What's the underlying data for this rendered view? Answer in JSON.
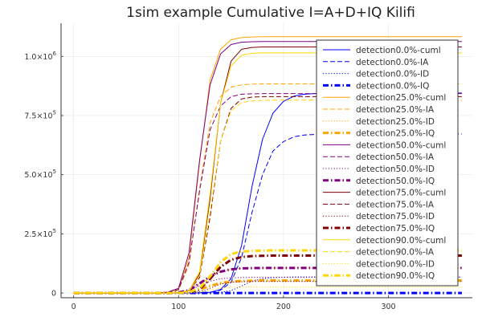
{
  "chart_data": {
    "type": "line",
    "title": "1sim example Cumulative I=A+D+IQ Kilifi",
    "xlabel": "",
    "ylabel": "",
    "xlim": [
      -12,
      380
    ],
    "ylim": [
      -20000,
      1140000
    ],
    "x_ticks": [
      {
        "value": 0,
        "label": "0"
      },
      {
        "value": 100,
        "label": "100"
      },
      {
        "value": 200,
        "label": "200"
      },
      {
        "value": 300,
        "label": "300"
      }
    ],
    "y_ticks": [
      {
        "value": 0,
        "label": "0"
      },
      {
        "value": 250000,
        "mant": "2.5×10",
        "exp": "5"
      },
      {
        "value": 500000,
        "mant": "5.0×10",
        "exp": "5"
      },
      {
        "value": 750000,
        "mant": "7.5×10",
        "exp": "5"
      },
      {
        "value": 1000000,
        "mant": "1.0×10",
        "exp": "6"
      }
    ],
    "grid": true,
    "legend_position": "right",
    "colors": {
      "detection0": "#0000ff",
      "detection25": "#ffa500",
      "detection50": "#800080",
      "detection75": "#800000",
      "detection90": "#ffd700"
    },
    "x": [
      0,
      10,
      20,
      30,
      40,
      50,
      60,
      70,
      80,
      90,
      100,
      110,
      120,
      130,
      140,
      150,
      160,
      170,
      180,
      190,
      200,
      210,
      220,
      230,
      240,
      250,
      260,
      270,
      280,
      290,
      300,
      310,
      320,
      330,
      340,
      350,
      360,
      370
    ],
    "series": [
      {
        "name": "detection0.0%-cuml",
        "color": "#0000ff",
        "dash": "solid",
        "width": 1,
        "values": [
          0,
          0,
          0,
          0,
          0,
          0,
          0,
          0,
          0,
          0,
          0,
          0,
          1000,
          3000,
          15000,
          60000,
          200000,
          450000,
          650000,
          760000,
          810000,
          832000,
          840000,
          843000,
          844000,
          845000,
          845000,
          845000,
          845000,
          845000,
          845000,
          845000,
          845000,
          845000,
          845000,
          845000,
          845000,
          845000
        ]
      },
      {
        "name": "detection0.0%-IA",
        "color": "#0000ff",
        "dash": "dash",
        "width": 1,
        "values": [
          0,
          0,
          0,
          0,
          0,
          0,
          0,
          0,
          0,
          0,
          0,
          0,
          800,
          2500,
          12000,
          45000,
          150000,
          340000,
          500000,
          600000,
          640000,
          660000,
          668000,
          670000,
          671000,
          672000,
          672000,
          672000,
          672000,
          672000,
          672000,
          672000,
          672000,
          672000,
          672000,
          672000,
          672000,
          672000
        ]
      },
      {
        "name": "detection0.0%-ID",
        "color": "#0000ff",
        "dash": "dot",
        "width": 1,
        "values": [
          0,
          0,
          0,
          0,
          0,
          0,
          0,
          0,
          0,
          0,
          0,
          0,
          200,
          600,
          3000,
          10000,
          30000,
          50000,
          60000,
          65000,
          67000,
          68000,
          68000,
          68000,
          68000,
          68000,
          68000,
          68000,
          68000,
          68000,
          68000,
          68000,
          68000,
          68000,
          68000,
          68000,
          68000,
          68000
        ]
      },
      {
        "name": "detection0.0%-IQ",
        "color": "#0000ff",
        "dash": "dashdot",
        "width": 3,
        "values": [
          0,
          0,
          0,
          0,
          0,
          0,
          0,
          0,
          0,
          0,
          0,
          0,
          0,
          0,
          0,
          0,
          0,
          0,
          0,
          0,
          0,
          0,
          0,
          0,
          0,
          0,
          0,
          0,
          0,
          0,
          0,
          0,
          0,
          0,
          0,
          0,
          0,
          0
        ]
      },
      {
        "name": "detection25.0%-cuml",
        "color": "#ffa500",
        "dash": "solid",
        "width": 1,
        "values": [
          0,
          0,
          0,
          0,
          0,
          0,
          0,
          0,
          0,
          3000,
          15000,
          150000,
          550000,
          900000,
          1030000,
          1070000,
          1080000,
          1082000,
          1083000,
          1083000,
          1083000,
          1083000,
          1083000,
          1083000,
          1083000,
          1083000,
          1083000,
          1083000,
          1083000,
          1083000,
          1083000,
          1083000,
          1083000,
          1083000,
          1083000,
          1083000,
          1083000,
          1083000
        ]
      },
      {
        "name": "detection25.0%-IA",
        "color": "#ffa500",
        "dash": "dash",
        "width": 1,
        "values": [
          0,
          0,
          0,
          0,
          0,
          0,
          0,
          0,
          0,
          2500,
          12000,
          120000,
          440000,
          720000,
          830000,
          870000,
          880000,
          883000,
          884000,
          884000,
          884000,
          884000,
          884000,
          884000,
          884000,
          884000,
          884000,
          884000,
          884000,
          884000,
          884000,
          884000,
          884000,
          884000,
          884000,
          884000,
          884000,
          884000
        ]
      },
      {
        "name": "detection25.0%-ID",
        "color": "#ffa500",
        "dash": "dot",
        "width": 1,
        "values": [
          0,
          0,
          0,
          0,
          0,
          0,
          0,
          0,
          0,
          300,
          1500,
          12000,
          40000,
          70000,
          90000,
          100000,
          104000,
          105000,
          106000,
          106000,
          106000,
          106000,
          106000,
          106000,
          106000,
          106000,
          106000,
          106000,
          106000,
          106000,
          106000,
          106000,
          106000,
          106000,
          106000,
          106000,
          106000,
          106000
        ]
      },
      {
        "name": "detection25.0%-IQ",
        "color": "#ffa500",
        "dash": "dashdot",
        "width": 3,
        "values": [
          0,
          0,
          0,
          0,
          0,
          0,
          0,
          0,
          0,
          0,
          1000,
          5000,
          15000,
          30000,
          42000,
          48000,
          51000,
          52000,
          53000,
          53000,
          53000,
          53000,
          53000,
          53000,
          53000,
          53000,
          53000,
          53000,
          53000,
          53000,
          53000,
          53000,
          53000,
          53000,
          53000,
          53000,
          53000,
          53000
        ]
      },
      {
        "name": "detection50.0%-cuml",
        "color": "#800080",
        "dash": "solid",
        "width": 1,
        "values": [
          0,
          0,
          0,
          0,
          0,
          0,
          0,
          0,
          0,
          4000,
          20000,
          170000,
          560000,
          880000,
          1010000,
          1050000,
          1060000,
          1062000,
          1063000,
          1063000,
          1063000,
          1063000,
          1063000,
          1063000,
          1063000,
          1063000,
          1063000,
          1063000,
          1063000,
          1063000,
          1063000,
          1063000,
          1063000,
          1063000,
          1063000,
          1063000,
          1063000,
          1063000
        ]
      },
      {
        "name": "detection50.0%-IA",
        "color": "#800080",
        "dash": "dash",
        "width": 1,
        "values": [
          0,
          0,
          0,
          0,
          0,
          0,
          0,
          0,
          0,
          3000,
          15000,
          130000,
          430000,
          690000,
          790000,
          830000,
          840000,
          842000,
          843000,
          843000,
          843000,
          843000,
          843000,
          843000,
          843000,
          843000,
          843000,
          843000,
          843000,
          843000,
          843000,
          843000,
          843000,
          843000,
          843000,
          843000,
          843000,
          843000
        ]
      },
      {
        "name": "detection50.0%-ID",
        "color": "#800080",
        "dash": "dot",
        "width": 1,
        "values": [
          0,
          0,
          0,
          0,
          0,
          0,
          0,
          0,
          0,
          300,
          1500,
          10000,
          30000,
          50000,
          60000,
          64000,
          65000,
          66000,
          66000,
          66000,
          66000,
          66000,
          66000,
          66000,
          66000,
          66000,
          66000,
          66000,
          66000,
          66000,
          66000,
          66000,
          66000,
          66000,
          66000,
          66000,
          66000,
          66000
        ]
      },
      {
        "name": "detection50.0%-IQ",
        "color": "#800080",
        "dash": "dashdot",
        "width": 3,
        "values": [
          0,
          0,
          0,
          0,
          0,
          0,
          0,
          0,
          0,
          0,
          2000,
          12000,
          40000,
          70000,
          90000,
          100000,
          104000,
          105000,
          106000,
          106000,
          106000,
          106000,
          106000,
          106000,
          106000,
          106000,
          106000,
          106000,
          106000,
          106000,
          106000,
          106000,
          106000,
          106000,
          106000,
          106000,
          106000,
          106000
        ]
      },
      {
        "name": "detection75.0%-cuml",
        "color": "#800000",
        "dash": "solid",
        "width": 1,
        "values": [
          0,
          0,
          0,
          0,
          0,
          0,
          0,
          0,
          0,
          0,
          1000,
          10000,
          80000,
          400000,
          800000,
          980000,
          1030000,
          1038000,
          1040000,
          1040000,
          1040000,
          1040000,
          1040000,
          1040000,
          1040000,
          1040000,
          1040000,
          1040000,
          1040000,
          1040000,
          1040000,
          1040000,
          1040000,
          1040000,
          1040000,
          1040000,
          1040000,
          1040000
        ]
      },
      {
        "name": "detection75.0%-IA",
        "color": "#800000",
        "dash": "dash",
        "width": 1,
        "values": [
          0,
          0,
          0,
          0,
          0,
          0,
          0,
          0,
          0,
          0,
          800,
          8000,
          65000,
          320000,
          640000,
          780000,
          820000,
          828000,
          830000,
          830000,
          830000,
          830000,
          830000,
          830000,
          830000,
          830000,
          830000,
          830000,
          830000,
          830000,
          830000,
          830000,
          830000,
          830000,
          830000,
          830000,
          830000,
          830000
        ]
      },
      {
        "name": "detection75.0%-ID",
        "color": "#800000",
        "dash": "dot",
        "width": 1,
        "values": [
          0,
          0,
          0,
          0,
          0,
          0,
          0,
          0,
          0,
          0,
          0,
          1000,
          5000,
          20000,
          38000,
          45000,
          48000,
          49000,
          49000,
          49000,
          49000,
          49000,
          49000,
          49000,
          49000,
          49000,
          49000,
          49000,
          49000,
          49000,
          49000,
          49000,
          49000,
          49000,
          49000,
          49000,
          49000,
          49000
        ]
      },
      {
        "name": "detection75.0%-IQ",
        "color": "#800000",
        "dash": "dashdot",
        "width": 3,
        "values": [
          0,
          0,
          0,
          0,
          0,
          0,
          0,
          0,
          0,
          0,
          0,
          3000,
          15000,
          60000,
          110000,
          140000,
          152000,
          156000,
          157000,
          158000,
          158000,
          158000,
          158000,
          158000,
          158000,
          158000,
          158000,
          158000,
          158000,
          158000,
          158000,
          158000,
          158000,
          158000,
          158000,
          158000,
          158000,
          158000
        ]
      },
      {
        "name": "detection90.0%-cuml",
        "color": "#ffd700",
        "dash": "solid",
        "width": 1,
        "values": [
          0,
          0,
          0,
          0,
          0,
          0,
          0,
          0,
          0,
          0,
          1000,
          10000,
          90000,
          420000,
          800000,
          960000,
          1005000,
          1013000,
          1015000,
          1015000,
          1015000,
          1015000,
          1015000,
          1015000,
          1015000,
          1015000,
          1015000,
          1015000,
          1015000,
          1015000,
          1015000,
          1015000,
          1015000,
          1015000,
          1015000,
          1015000,
          1015000,
          1015000
        ]
      },
      {
        "name": "detection90.0%-IA",
        "color": "#ffd700",
        "dash": "dash",
        "width": 1,
        "values": [
          0,
          0,
          0,
          0,
          0,
          0,
          0,
          0,
          0,
          0,
          800,
          8000,
          72000,
          340000,
          640000,
          770000,
          805000,
          812000,
          814000,
          815000,
          815000,
          815000,
          815000,
          815000,
          815000,
          815000,
          815000,
          815000,
          815000,
          815000,
          815000,
          815000,
          815000,
          815000,
          815000,
          815000,
          815000,
          815000
        ]
      },
      {
        "name": "detection90.0%-ID",
        "color": "#ffd700",
        "dash": "dot",
        "width": 1,
        "values": [
          0,
          0,
          0,
          0,
          0,
          0,
          0,
          0,
          0,
          0,
          0,
          500,
          3000,
          12000,
          20000,
          24000,
          25000,
          25000,
          25000,
          25000,
          25000,
          25000,
          25000,
          25000,
          25000,
          25000,
          25000,
          25000,
          25000,
          25000,
          25000,
          25000,
          25000,
          25000,
          25000,
          25000,
          25000,
          25000
        ]
      },
      {
        "name": "detection90.0%-IQ",
        "color": "#ffd700",
        "dash": "dashdot",
        "width": 3,
        "values": [
          0,
          0,
          0,
          0,
          0,
          0,
          0,
          0,
          0,
          0,
          0,
          3000,
          20000,
          70000,
          130000,
          165000,
          175000,
          178000,
          179000,
          180000,
          180000,
          180000,
          180000,
          180000,
          180000,
          180000,
          180000,
          180000,
          180000,
          180000,
          180000,
          180000,
          180000,
          180000,
          180000,
          180000,
          180000,
          180000
        ]
      }
    ]
  }
}
